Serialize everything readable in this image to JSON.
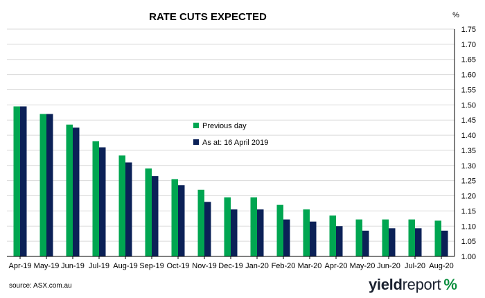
{
  "chart_data": {
    "type": "bar",
    "title": "RATE CUTS EXPECTED",
    "ylabel": "%",
    "ylim": [
      1.0,
      1.75
    ],
    "yticks": [
      "1.00",
      "1.05",
      "1.10",
      "1.15",
      "1.20",
      "1.25",
      "1.30",
      "1.35",
      "1.40",
      "1.45",
      "1.50",
      "1.55",
      "1.60",
      "1.65",
      "1.70",
      "1.75"
    ],
    "y_axis_side": "right",
    "grid": true,
    "legend_position": "center",
    "categories": [
      "Apr-19",
      "May-19",
      "Jun-19",
      "Jul-19",
      "Aug-19",
      "Sep-19",
      "Oct-19",
      "Nov-19",
      "Dec-19",
      "Jan-20",
      "Feb-20",
      "Mar-20",
      "Apr-20",
      "May-20",
      "Jun-20",
      "Jul-20",
      "Aug-20"
    ],
    "series": [
      {
        "name": "Previous day",
        "color": "#00a651",
        "values": [
          1.495,
          1.47,
          1.435,
          1.38,
          1.333,
          1.29,
          1.255,
          1.22,
          1.195,
          1.195,
          1.17,
          1.155,
          1.135,
          1.122,
          1.122,
          1.122,
          1.118
        ]
      },
      {
        "name": "As at: 16 April 2019",
        "color": "#0b2157",
        "values": [
          1.495,
          1.47,
          1.425,
          1.36,
          1.31,
          1.265,
          1.235,
          1.18,
          1.155,
          1.155,
          1.122,
          1.115,
          1.1,
          1.085,
          1.093,
          1.093,
          1.085
        ]
      }
    ]
  },
  "source": "source: ASX.com.au",
  "logo": {
    "part1": "yield",
    "part2": "report",
    "symbol": "%"
  }
}
